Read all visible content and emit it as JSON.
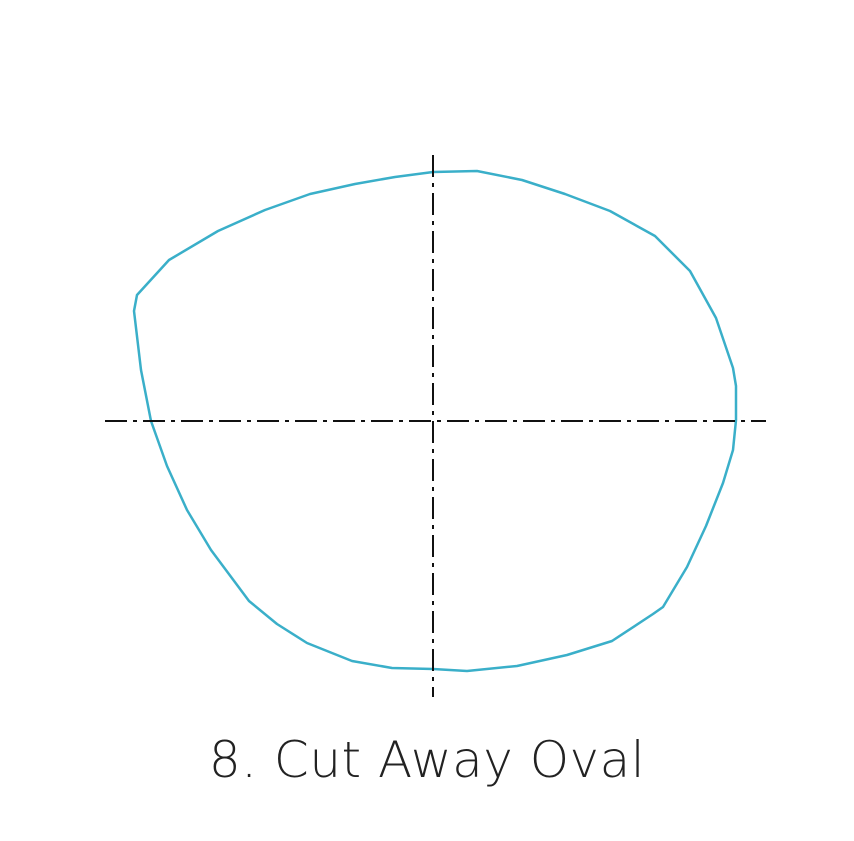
{
  "caption": "8. Cut Away Oval",
  "colors": {
    "outline": "#3aafc9",
    "axes": "#111111",
    "caption": "#222222",
    "background": "#ffffff"
  }
}
